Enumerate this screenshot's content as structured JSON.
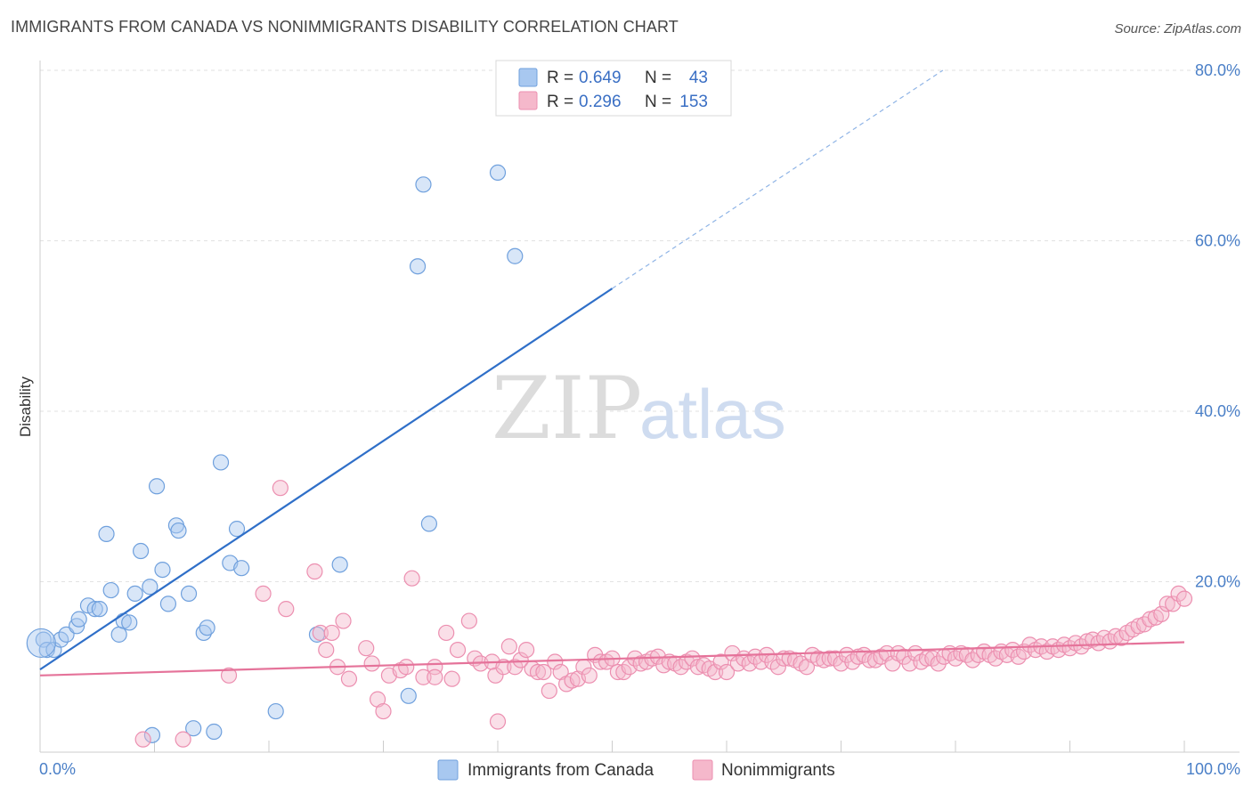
{
  "header": {
    "title": "IMMIGRANTS FROM CANADA VS NONIMMIGRANTS DISABILITY CORRELATION CHART",
    "source": "Source: ZipAtlas.com"
  },
  "watermark": {
    "zip": "ZIP",
    "atlas": "atlas"
  },
  "legend_top": {
    "rows": [
      {
        "r_label": "R =",
        "r_value": "0.649",
        "n_label": "N =",
        "n_value": "43",
        "color": "#a8c8f0"
      },
      {
        "r_label": "R =",
        "r_value": "0.296",
        "n_label": "N =",
        "n_value": "153",
        "color": "#f5b8cb"
      }
    ]
  },
  "legend_bottom": {
    "items": [
      {
        "label": "Immigrants from Canada",
        "color": "#a8c8f0"
      },
      {
        "label": "Nonimmigrants",
        "color": "#f5b8cb"
      }
    ]
  },
  "chart_data": {
    "type": "scatter",
    "ylabel": "Disability",
    "xlim": [
      0,
      100
    ],
    "ylim": [
      0,
      80
    ],
    "x_tick_labels": [
      "0.0%",
      "100.0%"
    ],
    "y_ticks": [
      20,
      40,
      60,
      80
    ],
    "y_tick_labels": [
      "20.0%",
      "40.0%",
      "60.0%",
      "80.0%"
    ],
    "grid": true,
    "series": [
      {
        "name": "Immigrants from Canada",
        "color": "#6fa0dd",
        "fill": "#a8c8f0",
        "trend": {
          "x0": 0,
          "y0": 9.7,
          "x1": 50,
          "y1": 54.4,
          "dashed_to_x": 78.9,
          "dashed_to_y": 80.0,
          "color": "#2f6fc8"
        },
        "points": [
          [
            0.3,
            13.2
          ],
          [
            0.6,
            12.0
          ],
          [
            1.2,
            12.0
          ],
          [
            1.8,
            13.2
          ],
          [
            2.3,
            13.8
          ],
          [
            3.2,
            14.8
          ],
          [
            3.4,
            15.6
          ],
          [
            4.2,
            17.2
          ],
          [
            4.8,
            16.8
          ],
          [
            5.2,
            16.8
          ],
          [
            5.8,
            25.6
          ],
          [
            6.2,
            19.0
          ],
          [
            6.9,
            13.8
          ],
          [
            7.3,
            15.4
          ],
          [
            7.8,
            15.2
          ],
          [
            8.3,
            18.6
          ],
          [
            8.8,
            23.6
          ],
          [
            9.6,
            19.4
          ],
          [
            9.8,
            2.0
          ],
          [
            10.2,
            31.2
          ],
          [
            10.7,
            21.4
          ],
          [
            11.2,
            17.4
          ],
          [
            11.9,
            26.6
          ],
          [
            12.1,
            26.0
          ],
          [
            13.0,
            18.6
          ],
          [
            13.4,
            2.8
          ],
          [
            14.3,
            14.0
          ],
          [
            14.6,
            14.6
          ],
          [
            15.2,
            2.4
          ],
          [
            15.8,
            34.0
          ],
          [
            16.6,
            22.2
          ],
          [
            17.2,
            26.2
          ],
          [
            17.6,
            21.6
          ],
          [
            20.6,
            4.8
          ],
          [
            24.2,
            13.8
          ],
          [
            26.2,
            22.0
          ],
          [
            32.2,
            6.6
          ],
          [
            33.0,
            57.0
          ],
          [
            33.5,
            66.6
          ],
          [
            34.0,
            26.8
          ],
          [
            40.0,
            68.0
          ],
          [
            41.5,
            58.2
          ],
          [
            0.1,
            12.8
          ]
        ]
      },
      {
        "name": "Nonimmigrants",
        "color": "#ec8fb0",
        "fill": "#f5b8cb",
        "trend": {
          "x0": 0,
          "y0": 9.0,
          "x1": 100,
          "y1": 12.9,
          "color": "#e5739a"
        },
        "points": [
          [
            9.0,
            1.5
          ],
          [
            12.5,
            1.5
          ],
          [
            16.5,
            9.0
          ],
          [
            19.5,
            18.6
          ],
          [
            21.0,
            31.0
          ],
          [
            21.5,
            16.8
          ],
          [
            24.0,
            21.2
          ],
          [
            24.5,
            14.0
          ],
          [
            25.0,
            12.0
          ],
          [
            25.5,
            14.0
          ],
          [
            26.0,
            10.0
          ],
          [
            26.5,
            15.4
          ],
          [
            27.0,
            8.6
          ],
          [
            28.5,
            12.2
          ],
          [
            29.0,
            10.4
          ],
          [
            29.5,
            6.2
          ],
          [
            30.0,
            4.8
          ],
          [
            30.5,
            9.0
          ],
          [
            31.5,
            9.6
          ],
          [
            32.0,
            10.0
          ],
          [
            32.5,
            20.4
          ],
          [
            33.5,
            8.8
          ],
          [
            34.5,
            10.0
          ],
          [
            34.5,
            8.8
          ],
          [
            35.5,
            14.0
          ],
          [
            36.0,
            8.6
          ],
          [
            36.5,
            12.0
          ],
          [
            37.5,
            15.4
          ],
          [
            38.0,
            11.0
          ],
          [
            38.5,
            10.4
          ],
          [
            39.5,
            10.6
          ],
          [
            39.8,
            9.0
          ],
          [
            40.0,
            3.6
          ],
          [
            40.5,
            10.0
          ],
          [
            41.0,
            12.4
          ],
          [
            41.5,
            10.0
          ],
          [
            42.0,
            10.8
          ],
          [
            42.5,
            12.0
          ],
          [
            43.0,
            9.8
          ],
          [
            43.5,
            9.4
          ],
          [
            44.0,
            9.4
          ],
          [
            44.5,
            7.2
          ],
          [
            45.0,
            10.6
          ],
          [
            45.5,
            9.4
          ],
          [
            46.0,
            8.0
          ],
          [
            46.5,
            8.4
          ],
          [
            47.0,
            8.6
          ],
          [
            47.5,
            10.0
          ],
          [
            48.0,
            9.0
          ],
          [
            48.5,
            11.4
          ],
          [
            49.0,
            10.6
          ],
          [
            49.5,
            10.6
          ],
          [
            50.0,
            11.0
          ],
          [
            50.5,
            9.4
          ],
          [
            51.0,
            9.4
          ],
          [
            51.5,
            10.0
          ],
          [
            52.0,
            11.0
          ],
          [
            52.5,
            10.4
          ],
          [
            53.0,
            10.6
          ],
          [
            53.5,
            11.0
          ],
          [
            54.0,
            11.2
          ],
          [
            54.5,
            10.2
          ],
          [
            55.0,
            10.6
          ],
          [
            55.5,
            10.4
          ],
          [
            56.0,
            10.0
          ],
          [
            56.5,
            10.6
          ],
          [
            57.0,
            11.0
          ],
          [
            57.5,
            10.0
          ],
          [
            58.0,
            10.2
          ],
          [
            58.5,
            9.8
          ],
          [
            59.0,
            9.4
          ],
          [
            59.5,
            10.6
          ],
          [
            60.0,
            9.4
          ],
          [
            60.5,
            11.6
          ],
          [
            61.0,
            10.4
          ],
          [
            61.5,
            11.0
          ],
          [
            62.0,
            10.4
          ],
          [
            62.5,
            11.2
          ],
          [
            63.0,
            10.6
          ],
          [
            63.5,
            11.4
          ],
          [
            64.0,
            10.6
          ],
          [
            64.5,
            10.0
          ],
          [
            65.0,
            11.0
          ],
          [
            65.5,
            11.0
          ],
          [
            66.0,
            10.8
          ],
          [
            66.5,
            10.4
          ],
          [
            67.0,
            10.0
          ],
          [
            67.5,
            11.4
          ],
          [
            68.0,
            11.0
          ],
          [
            68.5,
            10.8
          ],
          [
            69.0,
            11.0
          ],
          [
            69.5,
            11.0
          ],
          [
            70.0,
            10.4
          ],
          [
            70.5,
            11.4
          ],
          [
            71.0,
            10.6
          ],
          [
            71.5,
            11.2
          ],
          [
            72.0,
            11.4
          ],
          [
            72.5,
            10.8
          ],
          [
            73.0,
            10.8
          ],
          [
            73.5,
            11.2
          ],
          [
            74.0,
            11.6
          ],
          [
            74.5,
            10.4
          ],
          [
            75.0,
            11.6
          ],
          [
            75.5,
            11.2
          ],
          [
            76.0,
            10.4
          ],
          [
            76.5,
            11.6
          ],
          [
            77.0,
            10.6
          ],
          [
            77.5,
            11.0
          ],
          [
            78.0,
            11.0
          ],
          [
            78.5,
            10.4
          ],
          [
            79.0,
            11.2
          ],
          [
            79.5,
            11.6
          ],
          [
            80.0,
            11.0
          ],
          [
            80.5,
            11.6
          ],
          [
            81.0,
            11.4
          ],
          [
            81.5,
            10.8
          ],
          [
            82.0,
            11.4
          ],
          [
            82.5,
            11.8
          ],
          [
            83.0,
            11.4
          ],
          [
            83.5,
            11.0
          ],
          [
            84.0,
            11.8
          ],
          [
            84.5,
            11.4
          ],
          [
            85.0,
            12.0
          ],
          [
            85.5,
            11.2
          ],
          [
            86.0,
            11.8
          ],
          [
            86.5,
            12.6
          ],
          [
            87.0,
            12.0
          ],
          [
            87.5,
            12.4
          ],
          [
            88.0,
            11.8
          ],
          [
            88.5,
            12.4
          ],
          [
            89.0,
            12.0
          ],
          [
            89.5,
            12.6
          ],
          [
            90.0,
            12.2
          ],
          [
            90.5,
            12.8
          ],
          [
            91.0,
            12.4
          ],
          [
            91.5,
            13.0
          ],
          [
            92.0,
            13.2
          ],
          [
            92.5,
            12.8
          ],
          [
            93.0,
            13.4
          ],
          [
            93.5,
            13.0
          ],
          [
            94.0,
            13.6
          ],
          [
            94.5,
            13.4
          ],
          [
            95.0,
            14.0
          ],
          [
            95.5,
            14.4
          ],
          [
            96.0,
            14.8
          ],
          [
            96.5,
            15.0
          ],
          [
            97.0,
            15.6
          ],
          [
            97.5,
            15.8
          ],
          [
            98.0,
            16.2
          ],
          [
            98.5,
            17.4
          ],
          [
            99.0,
            17.4
          ],
          [
            99.5,
            18.6
          ],
          [
            100.0,
            18.0
          ]
        ]
      }
    ]
  }
}
